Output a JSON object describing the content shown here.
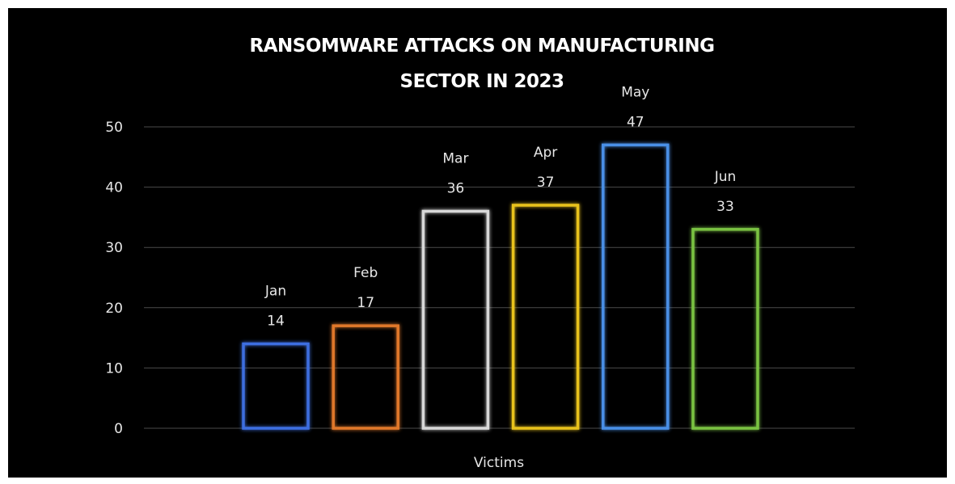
{
  "chart_data": {
    "type": "bar",
    "title_lines": [
      "RANSOMWARE ATTACKS ON MANUFACTURING",
      "SECTOR IN 2023"
    ],
    "xlabel": "Victims",
    "ylabel": "",
    "ylim": [
      0,
      50
    ],
    "yticks": [
      "0",
      "10",
      "20",
      "30",
      "40",
      "50"
    ],
    "grid": true,
    "categories": [
      "Jan",
      "Feb",
      "Mar",
      "Apr",
      "May",
      "Jun"
    ],
    "values": [
      14,
      17,
      36,
      37,
      47,
      33
    ],
    "colors": [
      "#3d6ee0",
      "#e0782a",
      "#d8d8d8",
      "#e8c21e",
      "#4a8fe6",
      "#7ac242"
    ],
    "background": "#000000"
  }
}
